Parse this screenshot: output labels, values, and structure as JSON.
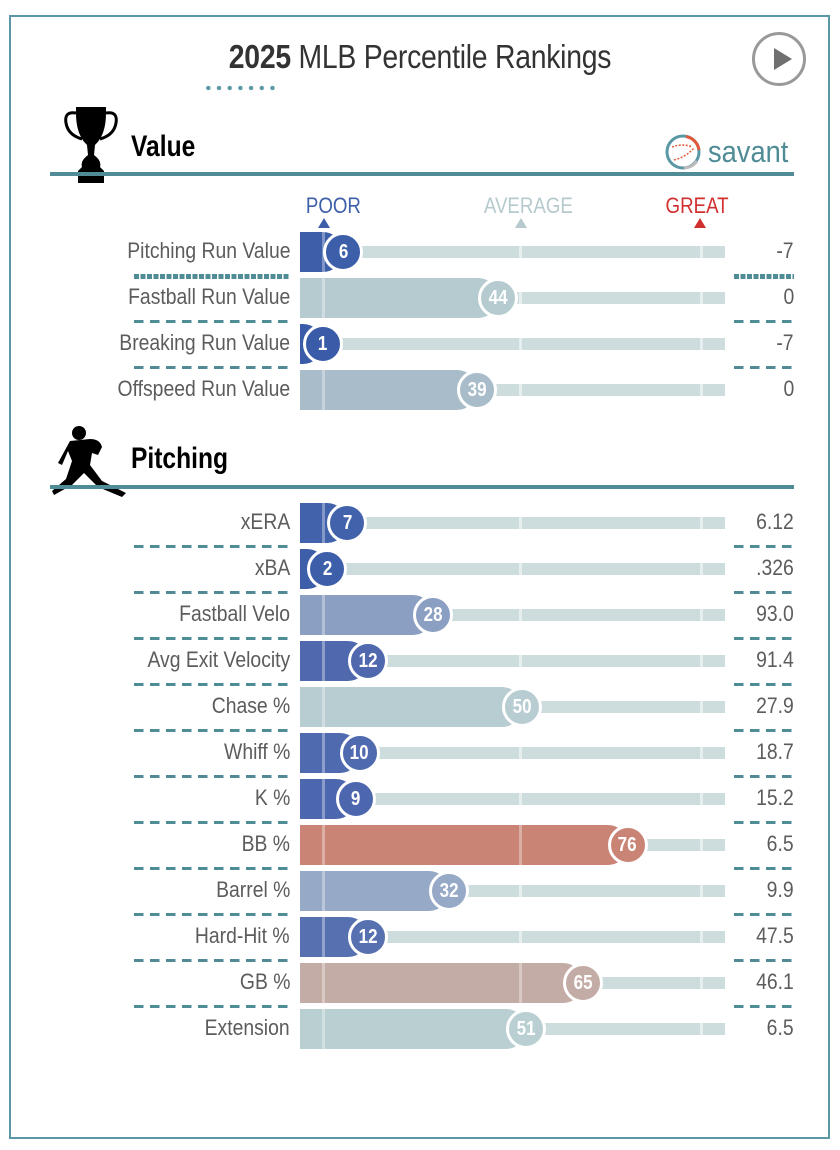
{
  "header": {
    "title_year": "2025",
    "title_rest": " MLB Percentile Rankings",
    "play_icon": "play-icon"
  },
  "brand": {
    "text": "savant",
    "icon": "baseball-icon"
  },
  "scale": {
    "poor": "POOR",
    "average": "AVERAGE",
    "great": "GREAT"
  },
  "colors": {
    "accent": "#4f8c95",
    "poor": "#3d5ea9",
    "average": "#b6cace",
    "great": "#c9796b",
    "track": "#cddcdc"
  },
  "chart_data": {
    "type": "bar",
    "title": "2025 MLB Percentile Rankings",
    "xlim": [
      0,
      100
    ],
    "sections": [
      {
        "name": "Value",
        "icon": "trophy-icon",
        "metrics": [
          {
            "label": "Pitching Run Value",
            "percentile": 6,
            "value": "-7",
            "color": "#3d5ea9"
          },
          {
            "label": "Fastball Run Value",
            "percentile": 44,
            "value": "0",
            "color": "#b5cbd0"
          },
          {
            "label": "Breaking Run Value",
            "percentile": 1,
            "value": "-7",
            "color": "#3a5ca8"
          },
          {
            "label": "Offspeed Run Value",
            "percentile": 39,
            "value": "0",
            "color": "#a9bcc9"
          }
        ]
      },
      {
        "name": "Pitching",
        "icon": "pitcher-icon",
        "metrics": [
          {
            "label": "xERA",
            "percentile": 7,
            "value": "6.12",
            "color": "#4262ab"
          },
          {
            "label": "xBA",
            "percentile": 2,
            "value": ".326",
            "color": "#3d5ea9"
          },
          {
            "label": "Fastball Velo",
            "percentile": 28,
            "value": "93.0",
            "color": "#8b9fc2"
          },
          {
            "label": "Avg Exit Velocity",
            "percentile": 12,
            "value": "91.4",
            "color": "#5069ae"
          },
          {
            "label": "Chase %",
            "percentile": 50,
            "value": "27.9",
            "color": "#b8cdd1"
          },
          {
            "label": "Whiff %",
            "percentile": 10,
            "value": "18.7",
            "color": "#4f6aaf"
          },
          {
            "label": "K %",
            "percentile": 9,
            "value": "15.2",
            "color": "#4c67ad"
          },
          {
            "label": "BB %",
            "percentile": 76,
            "value": "6.5",
            "color": "#c98476"
          },
          {
            "label": "Barrel %",
            "percentile": 32,
            "value": "9.9",
            "color": "#96a9c6"
          },
          {
            "label": "Hard-Hit %",
            "percentile": 12,
            "value": "47.5",
            "color": "#5670b0"
          },
          {
            "label": "GB %",
            "percentile": 65,
            "value": "46.1",
            "color": "#c4aca6"
          },
          {
            "label": "Extension",
            "percentile": 51,
            "value": "6.5",
            "color": "#b9cfd2"
          }
        ]
      }
    ]
  }
}
